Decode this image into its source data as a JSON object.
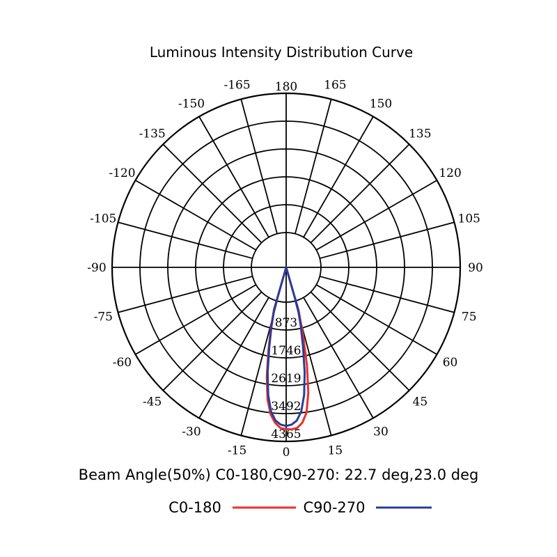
{
  "chart_data": {
    "type": "polar",
    "title": "Luminous Intensity Distribution Curve",
    "angle_labels": [
      "180",
      "165",
      "150",
      "135",
      "120",
      "105",
      "90",
      "75",
      "60",
      "45",
      "30",
      "15",
      "0",
      "-15",
      "-30",
      "-45",
      "-60",
      "-75",
      "-90",
      "-105",
      "-120",
      "-135",
      "-150",
      "-165"
    ],
    "angle_values": [
      180,
      165,
      150,
      135,
      120,
      105,
      90,
      75,
      60,
      45,
      30,
      15,
      0,
      -15,
      -30,
      -45,
      -60,
      -75,
      -90,
      -105,
      -120,
      -135,
      -150,
      -165
    ],
    "ring_labels": [
      "873",
      "1746",
      "2619",
      "3492",
      "4365"
    ],
    "ring_values": [
      873,
      1746,
      2619,
      3492,
      4365
    ],
    "r_max": 4365,
    "beam_angle_text": "Beam Angle(50%) C0-180,C90-270: 22.7 deg,23.0 deg",
    "grid": true,
    "series": [
      {
        "name": "C0-180",
        "color": "#e8312a",
        "angles": [
          -16,
          -14,
          -12,
          -10,
          -8,
          -6,
          -4,
          -2,
          0,
          2,
          4,
          6,
          8,
          10,
          12,
          14,
          16
        ],
        "values": [
          300,
          900,
          1600,
          2400,
          3100,
          3550,
          3800,
          3950,
          3980,
          3990,
          3950,
          3800,
          3500,
          2900,
          2050,
          1100,
          350
        ]
      },
      {
        "name": "C90-270",
        "color": "#2a3c9a",
        "angles": [
          -16,
          -14,
          -12,
          -10,
          -8,
          -6,
          -4,
          -2,
          0,
          2,
          4,
          6,
          8,
          10,
          12,
          14,
          16
        ],
        "values": [
          250,
          800,
          1450,
          2250,
          2950,
          3450,
          3720,
          3840,
          3880,
          3840,
          3720,
          3450,
          2950,
          2250,
          1450,
          800,
          250
        ]
      }
    ],
    "legend": {
      "placement": "bottom",
      "entries": [
        {
          "label": "C0-180",
          "color": "#e8312a"
        },
        {
          "label": "C90-270",
          "color": "#2a3c9a"
        }
      ]
    }
  }
}
